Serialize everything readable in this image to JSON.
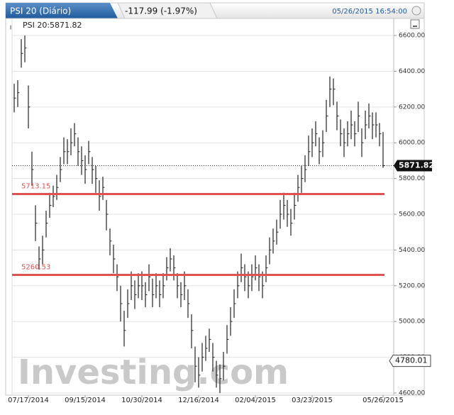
{
  "header": {
    "title": "PSI 20 (Diário)",
    "change": "-117.99 (-1.97%)",
    "datetime": "05/26/2015 16:54:00"
  },
  "chart_data": {
    "type": "ohlc",
    "legend": "PSI 20:5871.82",
    "watermark": "Investing.com",
    "color": "#222222",
    "categories": [
      null,
      null,
      null,
      null,
      "07/17/2014",
      null,
      null,
      null,
      null,
      null,
      null,
      null,
      null,
      null,
      null,
      null,
      null,
      null,
      null,
      null,
      "09/15/2014",
      null,
      null,
      null,
      null,
      null,
      null,
      null,
      null,
      null,
      null,
      null,
      null,
      null,
      null,
      null,
      "10/30/2014",
      null,
      null,
      null,
      null,
      null,
      null,
      null,
      null,
      null,
      null,
      null,
      null,
      null,
      null,
      null,
      "12/16/2014",
      null,
      null,
      null,
      null,
      null,
      null,
      null,
      null,
      null,
      null,
      null,
      null,
      null,
      null,
      null,
      "02/04/2015",
      null,
      null,
      null,
      null,
      null,
      null,
      null,
      null,
      null,
      null,
      null,
      null,
      null,
      null,
      null,
      "03/23/2015",
      null,
      null,
      null,
      null,
      null,
      null,
      null,
      null,
      null,
      null,
      null,
      null,
      null,
      null,
      null,
      null,
      null,
      null,
      null,
      "05/26/2015"
    ],
    "high": [
      6330,
      6350,
      6580,
      6600,
      6320,
      5950,
      5650,
      5420,
      5480,
      5620,
      5720,
      5760,
      5820,
      5920,
      6030,
      6020,
      6080,
      6110,
      6030,
      5980,
      5930,
      6010,
      5920,
      5870,
      5790,
      5810,
      5680,
      5520,
      5430,
      5320,
      5200,
      5060,
      5180,
      5280,
      5230,
      5270,
      5280,
      5220,
      5320,
      5240,
      5270,
      5230,
      5270,
      5360,
      5410,
      5370,
      5270,
      5220,
      5280,
      5180,
      5040,
      4860,
      4800,
      4880,
      4920,
      4960,
      4880,
      4780,
      4760,
      4830,
      4980,
      5080,
      5180,
      5280,
      5380,
      5320,
      5280,
      5320,
      5370,
      5320,
      5280,
      5370,
      5470,
      5520,
      5570,
      5680,
      5720,
      5680,
      5630,
      5720,
      5820,
      5870,
      5930,
      6040,
      6080,
      6120,
      6030,
      6070,
      6240,
      6370,
      6360,
      6230,
      6130,
      6080,
      6120,
      6180,
      6120,
      6230,
      6080,
      6180,
      6220,
      6170,
      6170,
      6110,
      6060
    ],
    "low": [
      6170,
      6200,
      6420,
      6450,
      6080,
      5760,
      5450,
      5290,
      5320,
      5470,
      5580,
      5640,
      5680,
      5780,
      5880,
      5880,
      5930,
      5980,
      5870,
      5820,
      5770,
      5880,
      5770,
      5720,
      5620,
      5680,
      5510,
      5370,
      5270,
      5170,
      5000,
      4860,
      5020,
      5120,
      5070,
      5130,
      5120,
      5080,
      5170,
      5080,
      5130,
      5080,
      5130,
      5230,
      5280,
      5230,
      5130,
      5080,
      5120,
      5020,
      4850,
      4660,
      4630,
      4720,
      4780,
      4830,
      4720,
      4630,
      4600,
      4670,
      4820,
      4920,
      5020,
      5130,
      5220,
      5170,
      5130,
      5170,
      5230,
      5170,
      5130,
      5220,
      5320,
      5380,
      5430,
      5520,
      5570,
      5530,
      5480,
      5570,
      5670,
      5720,
      5780,
      5870,
      5920,
      5980,
      5880,
      5920,
      6060,
      6200,
      6210,
      6070,
      5980,
      5920,
      5980,
      6020,
      5980,
      6060,
      5920,
      6020,
      6080,
      6020,
      6030,
      5980,
      5860
    ],
    "close": [
      6250,
      6280,
      6500,
      6530,
      6200,
      5850,
      5550,
      5350,
      5400,
      5550,
      5650,
      5700,
      5750,
      5850,
      5950,
      5950,
      6000,
      6050,
      5950,
      5900,
      5850,
      5950,
      5850,
      5800,
      5700,
      5750,
      5600,
      5450,
      5350,
      5250,
      5100,
      4950,
      5100,
      5200,
      5150,
      5200,
      5200,
      5150,
      5250,
      5150,
      5200,
      5150,
      5200,
      5300,
      5350,
      5300,
      5200,
      5150,
      5200,
      5100,
      4950,
      4750,
      4700,
      4800,
      4850,
      4900,
      4800,
      4700,
      4680,
      4750,
      4900,
      5000,
      5100,
      5200,
      5300,
      5250,
      5200,
      5250,
      5300,
      5250,
      5200,
      5300,
      5400,
      5450,
      5500,
      5600,
      5650,
      5600,
      5550,
      5650,
      5750,
      5800,
      5850,
      5950,
      6000,
      6050,
      5950,
      6000,
      6150,
      6300,
      6300,
      6150,
      6050,
      6000,
      6050,
      6100,
      6050,
      6150,
      6000,
      6100,
      6150,
      6100,
      6100,
      6050,
      5871.82
    ],
    "ylim": [
      4584,
      6632
    ],
    "yticks": [
      {
        "value": 4600,
        "label": "4600.00"
      },
      {
        "value": 4800,
        "label": "4800.00"
      },
      {
        "value": 5000,
        "label": "5000.00"
      },
      {
        "value": 5200,
        "label": "5200.00"
      },
      {
        "value": 5400,
        "label": "5400.00"
      },
      {
        "value": 5600,
        "label": "5600.00"
      },
      {
        "value": 5800,
        "label": "5800.00"
      },
      {
        "value": 6000,
        "label": "6000.00"
      },
      {
        "value": 6200,
        "label": "6200.00"
      },
      {
        "value": 6400,
        "label": "6400.00"
      },
      {
        "value": 6600,
        "label": "6600.00"
      }
    ],
    "grid": true,
    "levels": [
      {
        "value": 5713.15,
        "color": "#e05252"
      },
      {
        "value": 5260.53,
        "color": "#e05252"
      }
    ],
    "current_price": 5871.82,
    "price_marker": 4780.01
  }
}
